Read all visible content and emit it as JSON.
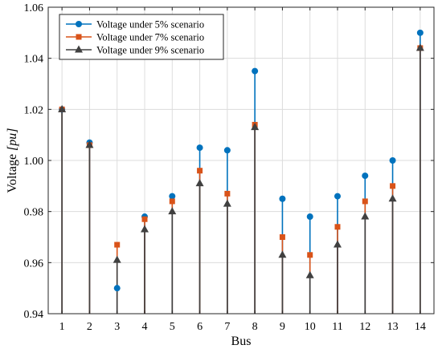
{
  "chart_data": {
    "type": "stem",
    "x": [
      1,
      2,
      3,
      4,
      5,
      6,
      7,
      8,
      9,
      10,
      11,
      12,
      13,
      14
    ],
    "series": [
      {
        "name": "Voltage under 5% scenario",
        "color": "#0072BD",
        "marker": "circle",
        "values": [
          1.02,
          1.007,
          0.95,
          0.978,
          0.986,
          1.005,
          1.004,
          1.035,
          0.985,
          0.978,
          0.986,
          0.994,
          1.0,
          1.05
        ]
      },
      {
        "name": "Voltage under 7% scenario",
        "color": "#D95319",
        "marker": "square",
        "values": [
          1.02,
          1.006,
          0.967,
          0.977,
          0.984,
          0.996,
          0.987,
          1.014,
          0.97,
          0.963,
          0.974,
          0.984,
          0.99,
          1.044
        ]
      },
      {
        "name": "Voltage under 9% scenario",
        "color": "#404040",
        "marker": "triangle",
        "values": [
          1.02,
          1.006,
          0.961,
          0.973,
          0.98,
          0.991,
          0.983,
          1.013,
          0.963,
          0.955,
          0.967,
          0.978,
          0.985,
          1.044
        ]
      }
    ],
    "xlabel": "Bus",
    "ylabel_text": "Voltage ",
    "ylabel_unit": "[pu]",
    "ylim": [
      0.94,
      1.06
    ],
    "xlim": [
      0.5,
      14.5
    ],
    "xticks": [
      "1",
      "2",
      "3",
      "4",
      "5",
      "6",
      "7",
      "8",
      "9",
      "10",
      "11",
      "12",
      "13",
      "14"
    ],
    "yticks": [
      "0.94",
      "0.96",
      "0.98",
      "1.00",
      "1.02",
      "1.04",
      "1.06"
    ],
    "grid": true,
    "legend_position": "top-left"
  }
}
